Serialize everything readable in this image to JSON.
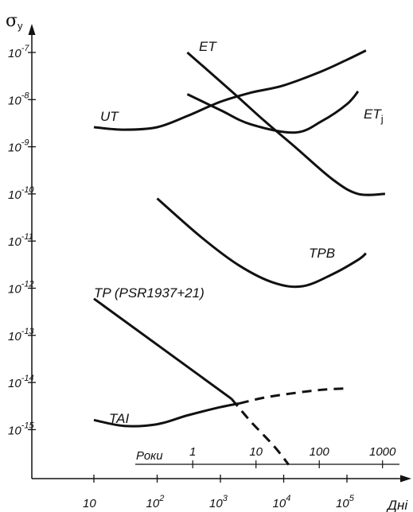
{
  "chart_data": {
    "type": "line",
    "ylabel_main": "σ",
    "ylabel_sub": "y",
    "xunit": "Дні",
    "years_label": "Роки",
    "y_axis": {
      "scale": "log",
      "range": [
        1e-16,
        1e-07
      ],
      "ticks": [
        {
          "base": "10",
          "exp": "-7",
          "value": 1e-07
        },
        {
          "base": "10",
          "exp": "-8",
          "value": 1e-08
        },
        {
          "base": "10",
          "exp": "-9",
          "value": 1e-09
        },
        {
          "base": "10",
          "exp": "-10",
          "value": 1e-10
        },
        {
          "base": "10",
          "exp": "-11",
          "value": 1e-11
        },
        {
          "base": "10",
          "exp": "-12",
          "value": 1e-12
        },
        {
          "base": "10",
          "exp": "-13",
          "value": 1e-13
        },
        {
          "base": "10",
          "exp": "-14",
          "value": 1e-14
        },
        {
          "base": "10",
          "exp": "-15",
          "value": 1e-15
        }
      ]
    },
    "x_axis": {
      "scale": "log",
      "range_days": [
        1,
        500000
      ],
      "ticks": [
        {
          "base": "10",
          "exp": "",
          "value": 10
        },
        {
          "base": "10",
          "exp": "2",
          "value": 100
        },
        {
          "base": "10",
          "exp": "3",
          "value": 1000
        },
        {
          "base": "10",
          "exp": "4",
          "value": 10000
        },
        {
          "base": "10",
          "exp": "5",
          "value": 100000
        }
      ]
    },
    "years_ticks": [
      {
        "label": "1",
        "days": 365
      },
      {
        "label": "10",
        "days": 3650
      },
      {
        "label": "100",
        "days": 36500
      },
      {
        "label": "1000",
        "days": 365000
      }
    ],
    "series": [
      {
        "name": "ET",
        "name_sub": "",
        "style": "solid",
        "points": [
          [
            300,
            1e-07
          ],
          [
            1500,
            1.5e-08
          ],
          [
            5000,
            3.5e-09
          ],
          [
            15000,
            1e-09
          ],
          [
            60000,
            2e-10
          ],
          [
            150000,
            1e-10
          ],
          [
            400000,
            1e-10
          ]
        ]
      },
      {
        "name": "ET",
        "name_sub": "j",
        "style": "solid",
        "points": [
          [
            300,
            1.3e-08
          ],
          [
            1000,
            6e-09
          ],
          [
            3000,
            3e-09
          ],
          [
            15000,
            2e-09
          ],
          [
            40000,
            3.5e-09
          ],
          [
            100000,
            8e-09
          ],
          [
            150000,
            1.5e-08
          ]
        ]
      },
      {
        "name": "UT",
        "name_sub": "",
        "style": "solid",
        "points": [
          [
            10,
            2.6e-09
          ],
          [
            30,
            2.3e-09
          ],
          [
            100,
            2.6e-09
          ],
          [
            300,
            4.5e-09
          ],
          [
            1000,
            9e-09
          ],
          [
            3000,
            1.4e-08
          ],
          [
            10000,
            2e-08
          ],
          [
            40000,
            4e-08
          ],
          [
            100000,
            7e-08
          ],
          [
            200000,
            1.1e-07
          ]
        ]
      },
      {
        "name": "TPB",
        "name_sub": "",
        "style": "solid",
        "points": [
          [
            100,
            8e-11
          ],
          [
            500,
            1.2e-11
          ],
          [
            2000,
            3e-12
          ],
          [
            7000,
            1.3e-12
          ],
          [
            20000,
            1.1e-12
          ],
          [
            60000,
            2e-12
          ],
          [
            150000,
            4e-12
          ],
          [
            200000,
            5.5e-12
          ]
        ]
      },
      {
        "name": "TP (PSR1937+21)",
        "name_sub": "",
        "style": "solid",
        "points": [
          [
            10,
            6e-13
          ],
          [
            1500,
            4.5e-15
          ]
        ]
      },
      {
        "name": "",
        "name_sub": "",
        "style": "dashed",
        "points": [
          [
            1500,
            4.5e-15
          ],
          [
            3000,
            1.5e-15
          ],
          [
            7000,
            4.5e-16
          ],
          [
            12000,
            1.8e-16
          ]
        ]
      },
      {
        "name": "TAI",
        "name_sub": "",
        "style": "solid",
        "points": [
          [
            10,
            1.6e-15
          ],
          [
            30,
            1.2e-15
          ],
          [
            100,
            1.3e-15
          ],
          [
            300,
            2e-15
          ],
          [
            1000,
            3e-15
          ],
          [
            2000,
            3.6e-15
          ]
        ]
      },
      {
        "name": "",
        "name_sub": "",
        "style": "dashed",
        "points": [
          [
            2000,
            3.6e-15
          ],
          [
            5000,
            4.8e-15
          ],
          [
            15000,
            6e-15
          ],
          [
            40000,
            7e-15
          ],
          [
            100000,
            7.5e-15
          ]
        ]
      }
    ]
  }
}
